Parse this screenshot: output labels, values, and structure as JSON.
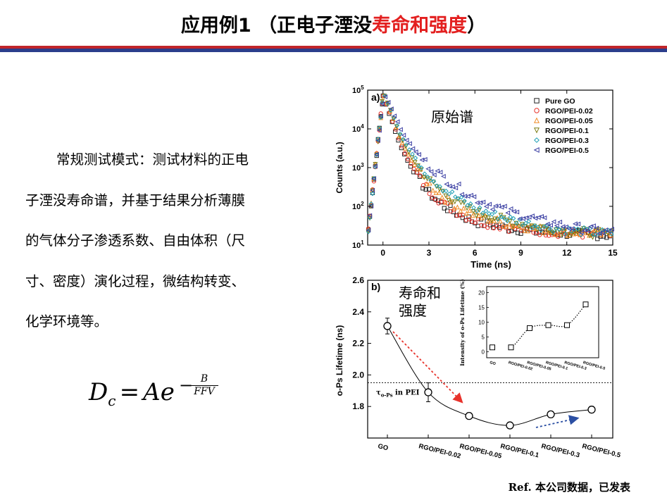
{
  "slide": {
    "title_prefix": "应用例1 （正电子湮没",
    "title_highlight": "寿命和强度",
    "title_suffix": "）",
    "body_lines": [
      "常规测试模式：测试材料的正电",
      "子湮没寿命谱，并基于结果分析薄膜",
      "的气体分子渗透系数、自由体积（尺",
      "寸、密度）演化过程，微结构转变、",
      "化学环境等。"
    ],
    "formula": {
      "lhs": "D",
      "lhs_sub": "c",
      "eq": "=",
      "rhs": "Ae",
      "exp_sign": "−",
      "frac_num": "B",
      "frac_den": "FFV"
    },
    "reference": {
      "prefix": "Ref.",
      "text": "本公司数据，已发表"
    },
    "colors": {
      "accent_red": "#e31f1f",
      "rule_red": "#c0252b",
      "rule_blue": "#2b3e8c"
    }
  },
  "chart_data": [
    {
      "type": "scatter",
      "panel_label": "a)",
      "annotation": "原始谱",
      "xlabel": "Time (ns)",
      "ylabel": "Counts (a.u.)",
      "xlim": [
        -1,
        15
      ],
      "ylim_log10": [
        1,
        5
      ],
      "y_scale": "log",
      "x_ticks": [
        "0",
        "3",
        "6",
        "9",
        "12",
        "15"
      ],
      "x_tick_values": [
        0,
        3,
        6,
        9,
        12,
        15
      ],
      "y_ticks": [
        {
          "base": "10",
          "exp": "1",
          "value": 10
        },
        {
          "base": "10",
          "exp": "2",
          "value": 100
        },
        {
          "base": "10",
          "exp": "3",
          "value": 1000
        },
        {
          "base": "10",
          "exp": "4",
          "value": 10000
        },
        {
          "base": "10",
          "exp": "5",
          "value": 100000
        }
      ],
      "legend_position": "top-right",
      "series": [
        {
          "name": "Pure GO",
          "marker": "square",
          "color": "#222222",
          "x": [
            0.0,
            0.5,
            1.0,
            1.5,
            2.0,
            2.5,
            3.0,
            4.0,
            5.0,
            6.0,
            8.0,
            10.0,
            12.0,
            14.5
          ],
          "y": [
            70000,
            20000,
            5000,
            1800,
            800,
            400,
            220,
            100,
            60,
            40,
            28,
            22,
            20,
            18
          ]
        },
        {
          "name": "RGO/PEI-0.02",
          "marker": "circle",
          "color": "#e8322b",
          "x": [
            0.0,
            0.5,
            1.0,
            1.5,
            2.0,
            2.5,
            3.0,
            4.0,
            5.0,
            6.0,
            8.0,
            10.0,
            12.0,
            14.5
          ],
          "y": [
            70000,
            21000,
            5500,
            2000,
            900,
            450,
            250,
            110,
            65,
            42,
            29,
            23,
            20,
            18
          ]
        },
        {
          "name": "RGO/PEI-0.05",
          "marker": "triangle-up",
          "color": "#f08a24",
          "x": [
            0.0,
            0.5,
            1.0,
            1.5,
            2.0,
            2.5,
            3.0,
            4.0,
            5.0,
            6.0,
            8.0,
            10.0,
            12.0,
            14.5
          ],
          "y": [
            70000,
            23000,
            6500,
            2500,
            1200,
            620,
            360,
            160,
            90,
            58,
            36,
            26,
            22,
            19
          ]
        },
        {
          "name": "RGO/PEI-0.1",
          "marker": "triangle-down",
          "color": "#7a7a10",
          "x": [
            0.0,
            0.5,
            1.0,
            1.5,
            2.0,
            2.5,
            3.0,
            4.0,
            5.0,
            6.0,
            8.0,
            10.0,
            12.0,
            14.5
          ],
          "y": [
            70000,
            24000,
            7000,
            2800,
            1400,
            750,
            440,
            200,
            110,
            70,
            42,
            29,
            23,
            19
          ]
        },
        {
          "name": "RGO/PEI-0.3",
          "marker": "diamond",
          "color": "#1f9fb5",
          "x": [
            0.0,
            0.5,
            1.0,
            1.5,
            2.0,
            2.5,
            3.0,
            4.0,
            5.0,
            6.0,
            8.0,
            10.0,
            12.0,
            14.5
          ],
          "y": [
            70000,
            25000,
            7800,
            3300,
            1700,
            950,
            560,
            260,
            140,
            85,
            48,
            32,
            24,
            20
          ]
        },
        {
          "name": "RGO/PEI-0.5",
          "marker": "triangle-left",
          "color": "#3b3fa3",
          "x": [
            0.0,
            0.5,
            1.0,
            1.5,
            2.0,
            2.5,
            3.0,
            4.0,
            5.0,
            6.0,
            8.0,
            10.0,
            12.0,
            14.5
          ],
          "y": [
            70000,
            28000,
            9500,
            4500,
            2500,
            1500,
            950,
            480,
            260,
            150,
            75,
            45,
            30,
            22
          ]
        }
      ]
    },
    {
      "type": "scatter",
      "panel_label": "b)",
      "annotation_lines": [
        "寿命和",
        "强度"
      ],
      "ylabel": "o-Ps Lifetime (ns)",
      "categories": [
        "GO",
        "RGO/PEI-0.02",
        "RGO/PEI-0.05",
        "RGO/PEI-0.1",
        "RGO/PEI-0.3",
        "RGO/PEI-0.5"
      ],
      "values": [
        2.31,
        1.89,
        1.74,
        1.68,
        1.75,
        1.78
      ],
      "errors": [
        0.05,
        0.06,
        0.02,
        0.01,
        0.02,
        0.02
      ],
      "ylim": [
        1.6,
        2.6
      ],
      "y_ticks": [
        "1.8",
        "2.0",
        "2.2",
        "2.4",
        "2.6"
      ],
      "y_tick_values": [
        1.8,
        2.0,
        2.2,
        2.4,
        2.6
      ],
      "reference_line": {
        "value": 1.95,
        "label_symbol": "τ",
        "label_sub": "o-Ps",
        "label_text": " in PEI"
      },
      "inset": {
        "ylabel": "Intensity of o-Ps Lifetime (%)",
        "categories": [
          "GO",
          "RGO/PEI-0.02",
          "RGO/PEI-0.05",
          "RGO/PEI-0.1",
          "RGO/PEI-0.3",
          "RGO/PEI-0.5"
        ],
        "values": [
          1.5,
          1.5,
          8.0,
          9.0,
          9.0,
          16.0
        ],
        "ylim": [
          -2,
          22
        ],
        "y_ticks": [
          "0",
          "5",
          "10",
          "15",
          "20"
        ],
        "y_tick_values": [
          0,
          5,
          10,
          15,
          20
        ]
      }
    }
  ]
}
